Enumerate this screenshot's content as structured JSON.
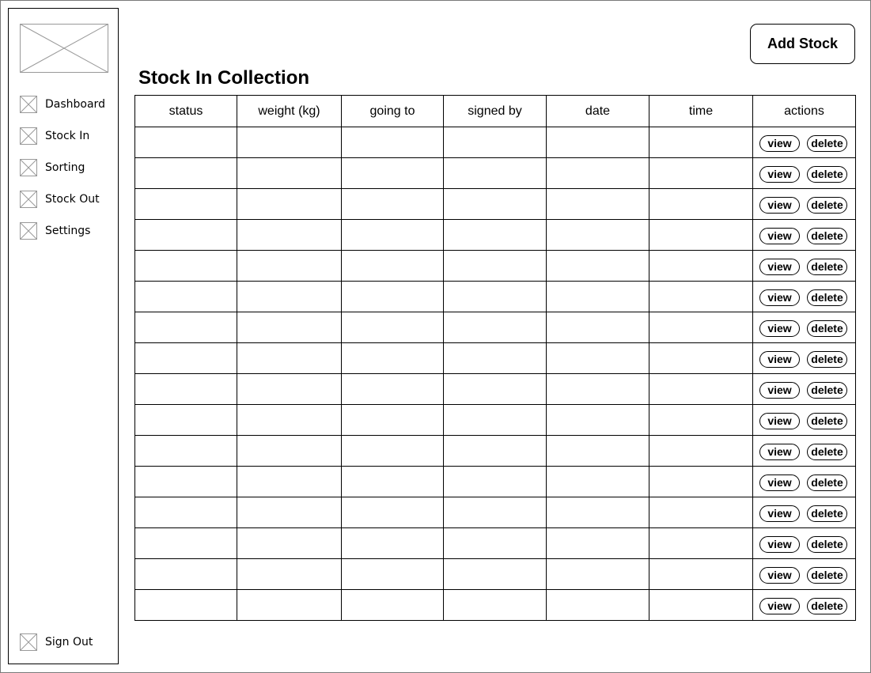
{
  "sidebar": {
    "items": [
      {
        "label": "Dashboard",
        "icon": "placeholder-icon"
      },
      {
        "label": "Stock In",
        "icon": "placeholder-icon"
      },
      {
        "label": "Sorting",
        "icon": "placeholder-icon"
      },
      {
        "label": "Stock Out",
        "icon": "placeholder-icon"
      },
      {
        "label": "Settings",
        "icon": "placeholder-icon"
      }
    ],
    "sign_out": {
      "label": "Sign Out",
      "icon": "placeholder-icon"
    }
  },
  "header": {
    "title": "Stock In Collection",
    "add_button_label": "Add Stock"
  },
  "table": {
    "columns": [
      "status",
      "weight (kg)",
      "going to",
      "signed by",
      "date",
      "time",
      "actions"
    ],
    "row_count": 16,
    "view_label": "view",
    "delete_label": "delete"
  }
}
